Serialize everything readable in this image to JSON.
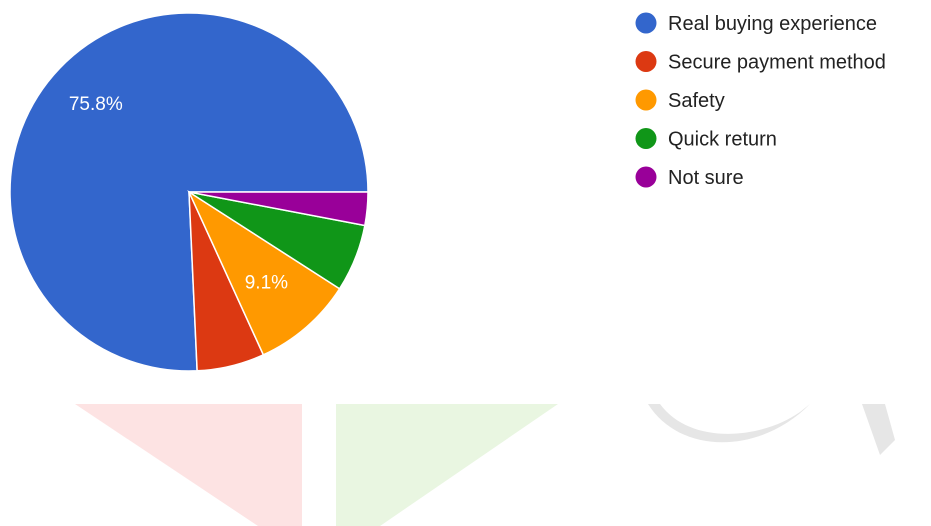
{
  "chart_data": {
    "type": "pie",
    "title": "",
    "slices": [
      {
        "label": "Real buying experience",
        "value": 75.8,
        "color": "#3366cc",
        "data_label": "75.8%"
      },
      {
        "label": "Secure payment method",
        "value": 6.1,
        "color": "#dc3912",
        "data_label": ""
      },
      {
        "label": "Safety",
        "value": 9.1,
        "color": "#ff9900",
        "data_label": "9.1%"
      },
      {
        "label": "Quick return",
        "value": 6.1,
        "color": "#109618",
        "data_label": ""
      },
      {
        "label": "Not sure",
        "value": 3.0,
        "color": "#990099",
        "data_label": ""
      }
    ],
    "legend_position": "right"
  },
  "watermark": {
    "colors": [
      "#fde3e3",
      "#e9f6e1",
      "#e6e6e6"
    ]
  }
}
